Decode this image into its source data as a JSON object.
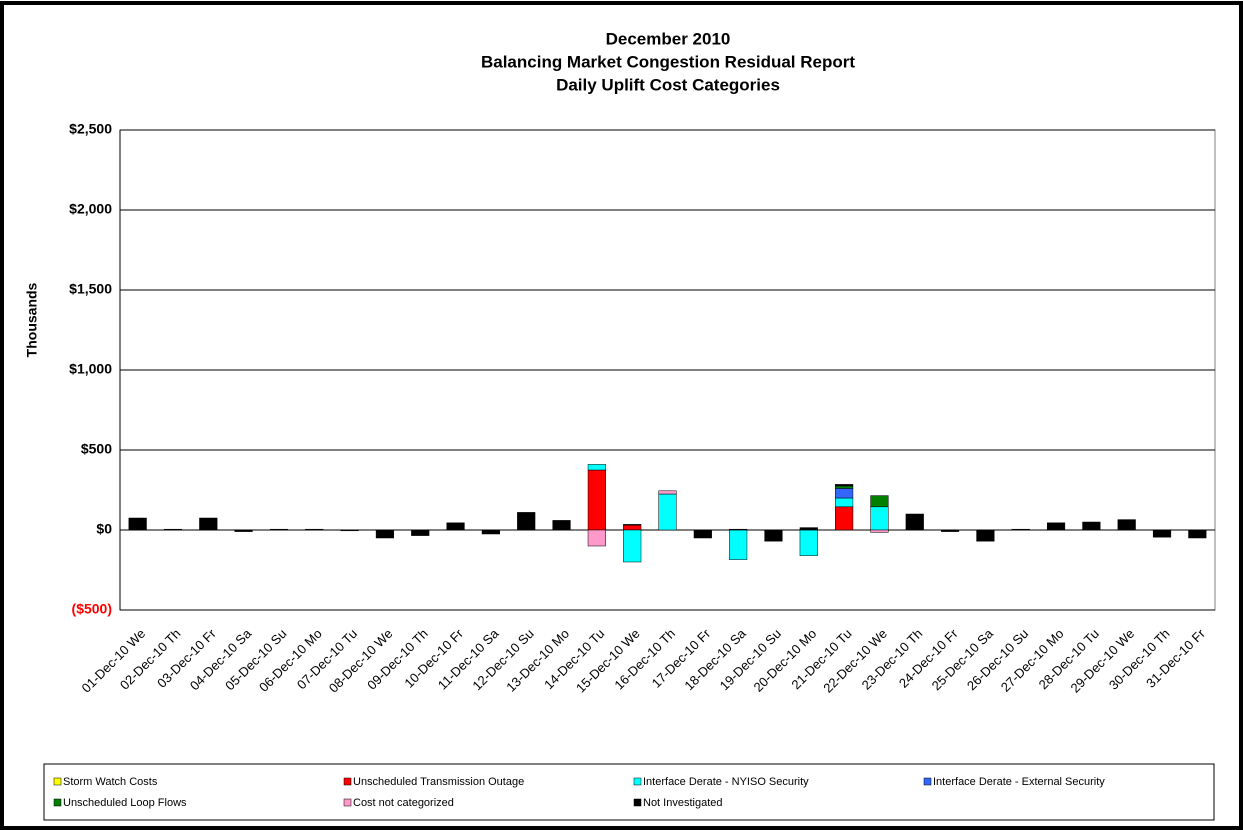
{
  "chart_data": {
    "type": "stacked_bar",
    "title": "December 2010",
    "subtitle": [
      "Balancing Market Congestion Residual Report",
      "Daily Uplift Cost Categories"
    ],
    "y_label": "Thousands",
    "categories": [
      "01-Dec-10 We",
      "02-Dec-10 Th",
      "03-Dec-10 Fr",
      "04-Dec-10 Sa",
      "05-Dec-10 Su",
      "06-Dec-10 Mo",
      "07-Dec-10 Tu",
      "08-Dec-10 We",
      "09-Dec-10 Th",
      "10-Dec-10 Fr",
      "11-Dec-10 Sa",
      "12-Dec-10 Su",
      "13-Dec-10 Mo",
      "14-Dec-10 Tu",
      "15-Dec-10 We",
      "16-Dec-10 Th",
      "17-Dec-10 Fr",
      "18-Dec-10 Sa",
      "19-Dec-10 Su",
      "20-Dec-10 Mo",
      "21-Dec-10 Tu",
      "22-Dec-10 We",
      "23-Dec-10 Th",
      "24-Dec-10 Fr",
      "25-Dec-10 Sa",
      "26-Dec-10 Su",
      "27-Dec-10 Mo",
      "28-Dec-10 Tu",
      "29-Dec-10 We",
      "30-Dec-10 Th",
      "31-Dec-10 Fr"
    ],
    "series": [
      {
        "name": "Storm Watch Costs",
        "color": "#ffff00",
        "values": [
          0,
          0,
          0,
          0,
          0,
          0,
          0,
          0,
          0,
          0,
          0,
          0,
          0,
          0,
          0,
          0,
          0,
          0,
          0,
          0,
          0,
          0,
          0,
          0,
          0,
          0,
          0,
          0,
          0,
          0,
          0
        ]
      },
      {
        "name": "Unscheduled Transmission Outage",
        "color": "#ff0000",
        "values": [
          0,
          0,
          0,
          0,
          0,
          0,
          0,
          0,
          0,
          0,
          0,
          0,
          0,
          375,
          30,
          0,
          0,
          0,
          0,
          0,
          145,
          0,
          0,
          0,
          0,
          0,
          0,
          0,
          0,
          0,
          0
        ]
      },
      {
        "name": "Interface Derate - NYISO Security",
        "color": "#00ffff",
        "values": [
          0,
          0,
          0,
          0,
          0,
          0,
          0,
          0,
          0,
          0,
          0,
          0,
          0,
          35,
          -200,
          225,
          0,
          -185,
          0,
          -160,
          55,
          145,
          0,
          0,
          0,
          0,
          0,
          0,
          0,
          0,
          0
        ]
      },
      {
        "name": "Interface Derate - External Security",
        "color": "#3366ff",
        "values": [
          0,
          0,
          0,
          0,
          0,
          0,
          0,
          0,
          0,
          0,
          0,
          0,
          0,
          0,
          0,
          0,
          0,
          0,
          0,
          0,
          60,
          0,
          0,
          0,
          0,
          0,
          0,
          0,
          0,
          0,
          0
        ]
      },
      {
        "name": "Unscheduled Loop Flows",
        "color": "#008000",
        "values": [
          0,
          0,
          0,
          0,
          0,
          0,
          0,
          0,
          0,
          0,
          0,
          0,
          0,
          0,
          0,
          0,
          0,
          0,
          0,
          0,
          15,
          70,
          0,
          0,
          0,
          0,
          0,
          0,
          0,
          0,
          0
        ]
      },
      {
        "name": "Cost not categorized",
        "color": "#ff99cc",
        "values": [
          0,
          0,
          0,
          0,
          0,
          0,
          0,
          0,
          0,
          0,
          0,
          0,
          0,
          -100,
          0,
          20,
          0,
          0,
          0,
          0,
          0,
          -15,
          0,
          0,
          0,
          0,
          0,
          0,
          0,
          0,
          0
        ]
      },
      {
        "name": "Not Investigated",
        "color": "#000000",
        "values": [
          75,
          5,
          75,
          -10,
          5,
          5,
          -5,
          -50,
          -35,
          45,
          -25,
          110,
          60,
          0,
          5,
          0,
          -50,
          5,
          -70,
          15,
          10,
          0,
          100,
          -10,
          -70,
          5,
          45,
          50,
          65,
          -45,
          -50
        ]
      }
    ],
    "ylim": [
      -500,
      2500
    ],
    "yticks": [
      {
        "value": -500,
        "label": "($500)"
      },
      {
        "value": 0,
        "label": "$0"
      },
      {
        "value": 500,
        "label": "$500"
      },
      {
        "value": 1000,
        "label": "$1,000"
      },
      {
        "value": 1500,
        "label": "$1,500"
      },
      {
        "value": 2000,
        "label": "$2,000"
      },
      {
        "value": 2500,
        "label": "$2,500"
      }
    ],
    "grid": true
  }
}
